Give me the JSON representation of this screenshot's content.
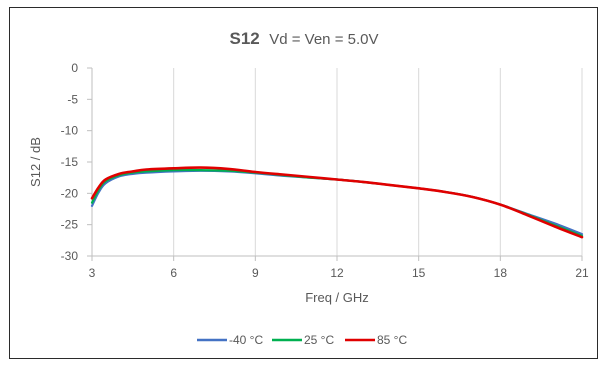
{
  "chart_data": {
    "type": "line",
    "title": "S12",
    "subtitle": "Vd = Ven = 5.0V",
    "xlabel": "Freq / GHz",
    "ylabel": "S12 / dB",
    "xlim": [
      3,
      21
    ],
    "ylim": [
      -30,
      0
    ],
    "xticks": [
      3,
      6,
      9,
      12,
      15,
      18,
      21
    ],
    "yticks": [
      0,
      -5,
      -10,
      -15,
      -20,
      -25,
      -30
    ],
    "grid": "vertical",
    "legend_position": "bottom",
    "series": [
      {
        "name": "-40 °C",
        "color": "#4472C4",
        "x": [
          3,
          3.25,
          3.5,
          4,
          4.5,
          5,
          6,
          7,
          8,
          9,
          10,
          11,
          12,
          13,
          14,
          15,
          16,
          17,
          18,
          19,
          20,
          21
        ],
        "y": [
          -22.0,
          -19.8,
          -18.4,
          -17.3,
          -16.9,
          -16.7,
          -16.5,
          -16.4,
          -16.5,
          -16.8,
          -17.2,
          -17.5,
          -17.8,
          -18.2,
          -18.7,
          -19.2,
          -19.8,
          -20.6,
          -21.8,
          -23.3,
          -24.8,
          -26.5
        ]
      },
      {
        "name": "25 °C",
        "color": "#00B050",
        "x": [
          3,
          3.25,
          3.5,
          4,
          4.5,
          5,
          6,
          7,
          8,
          9,
          10,
          11,
          12,
          13,
          14,
          15,
          16,
          17,
          18,
          19,
          20,
          21
        ],
        "y": [
          -21.5,
          -19.4,
          -18.1,
          -17.1,
          -16.7,
          -16.5,
          -16.3,
          -16.3,
          -16.4,
          -16.7,
          -17.1,
          -17.5,
          -17.8,
          -18.2,
          -18.7,
          -19.2,
          -19.8,
          -20.6,
          -21.8,
          -23.4,
          -25.1,
          -26.8
        ]
      },
      {
        "name": "85 °C",
        "color": "#E00000",
        "x": [
          3,
          3.25,
          3.5,
          4,
          4.5,
          5,
          6,
          7,
          8,
          9,
          10,
          11,
          12,
          13,
          14,
          15,
          16,
          17,
          18,
          19,
          20,
          21
        ],
        "y": [
          -20.8,
          -19.0,
          -17.8,
          -16.9,
          -16.5,
          -16.2,
          -16.0,
          -15.9,
          -16.1,
          -16.6,
          -17.0,
          -17.4,
          -17.8,
          -18.2,
          -18.7,
          -19.2,
          -19.8,
          -20.6,
          -21.8,
          -23.5,
          -25.3,
          -27.0
        ]
      }
    ]
  }
}
